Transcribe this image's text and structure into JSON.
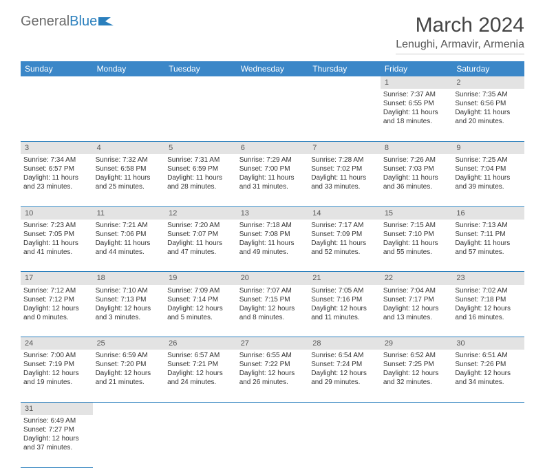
{
  "brand": {
    "part1": "General",
    "part2": "Blue"
  },
  "title": "March 2024",
  "location": "Lenughi, Armavir, Armenia",
  "colors": {
    "header_bg": "#3b87c8",
    "header_text": "#ffffff",
    "daynum_bg": "#e3e3e3",
    "divider": "#2a7fbd",
    "text": "#333333"
  },
  "weekdays": [
    "Sunday",
    "Monday",
    "Tuesday",
    "Wednesday",
    "Thursday",
    "Friday",
    "Saturday"
  ],
  "weeks": [
    [
      null,
      null,
      null,
      null,
      null,
      {
        "n": "1",
        "sr": "Sunrise: 7:37 AM",
        "ss": "Sunset: 6:55 PM",
        "dl": "Daylight: 11 hours and 18 minutes."
      },
      {
        "n": "2",
        "sr": "Sunrise: 7:35 AM",
        "ss": "Sunset: 6:56 PM",
        "dl": "Daylight: 11 hours and 20 minutes."
      }
    ],
    [
      {
        "n": "3",
        "sr": "Sunrise: 7:34 AM",
        "ss": "Sunset: 6:57 PM",
        "dl": "Daylight: 11 hours and 23 minutes."
      },
      {
        "n": "4",
        "sr": "Sunrise: 7:32 AM",
        "ss": "Sunset: 6:58 PM",
        "dl": "Daylight: 11 hours and 25 minutes."
      },
      {
        "n": "5",
        "sr": "Sunrise: 7:31 AM",
        "ss": "Sunset: 6:59 PM",
        "dl": "Daylight: 11 hours and 28 minutes."
      },
      {
        "n": "6",
        "sr": "Sunrise: 7:29 AM",
        "ss": "Sunset: 7:00 PM",
        "dl": "Daylight: 11 hours and 31 minutes."
      },
      {
        "n": "7",
        "sr": "Sunrise: 7:28 AM",
        "ss": "Sunset: 7:02 PM",
        "dl": "Daylight: 11 hours and 33 minutes."
      },
      {
        "n": "8",
        "sr": "Sunrise: 7:26 AM",
        "ss": "Sunset: 7:03 PM",
        "dl": "Daylight: 11 hours and 36 minutes."
      },
      {
        "n": "9",
        "sr": "Sunrise: 7:25 AM",
        "ss": "Sunset: 7:04 PM",
        "dl": "Daylight: 11 hours and 39 minutes."
      }
    ],
    [
      {
        "n": "10",
        "sr": "Sunrise: 7:23 AM",
        "ss": "Sunset: 7:05 PM",
        "dl": "Daylight: 11 hours and 41 minutes."
      },
      {
        "n": "11",
        "sr": "Sunrise: 7:21 AM",
        "ss": "Sunset: 7:06 PM",
        "dl": "Daylight: 11 hours and 44 minutes."
      },
      {
        "n": "12",
        "sr": "Sunrise: 7:20 AM",
        "ss": "Sunset: 7:07 PM",
        "dl": "Daylight: 11 hours and 47 minutes."
      },
      {
        "n": "13",
        "sr": "Sunrise: 7:18 AM",
        "ss": "Sunset: 7:08 PM",
        "dl": "Daylight: 11 hours and 49 minutes."
      },
      {
        "n": "14",
        "sr": "Sunrise: 7:17 AM",
        "ss": "Sunset: 7:09 PM",
        "dl": "Daylight: 11 hours and 52 minutes."
      },
      {
        "n": "15",
        "sr": "Sunrise: 7:15 AM",
        "ss": "Sunset: 7:10 PM",
        "dl": "Daylight: 11 hours and 55 minutes."
      },
      {
        "n": "16",
        "sr": "Sunrise: 7:13 AM",
        "ss": "Sunset: 7:11 PM",
        "dl": "Daylight: 11 hours and 57 minutes."
      }
    ],
    [
      {
        "n": "17",
        "sr": "Sunrise: 7:12 AM",
        "ss": "Sunset: 7:12 PM",
        "dl": "Daylight: 12 hours and 0 minutes."
      },
      {
        "n": "18",
        "sr": "Sunrise: 7:10 AM",
        "ss": "Sunset: 7:13 PM",
        "dl": "Daylight: 12 hours and 3 minutes."
      },
      {
        "n": "19",
        "sr": "Sunrise: 7:09 AM",
        "ss": "Sunset: 7:14 PM",
        "dl": "Daylight: 12 hours and 5 minutes."
      },
      {
        "n": "20",
        "sr": "Sunrise: 7:07 AM",
        "ss": "Sunset: 7:15 PM",
        "dl": "Daylight: 12 hours and 8 minutes."
      },
      {
        "n": "21",
        "sr": "Sunrise: 7:05 AM",
        "ss": "Sunset: 7:16 PM",
        "dl": "Daylight: 12 hours and 11 minutes."
      },
      {
        "n": "22",
        "sr": "Sunrise: 7:04 AM",
        "ss": "Sunset: 7:17 PM",
        "dl": "Daylight: 12 hours and 13 minutes."
      },
      {
        "n": "23",
        "sr": "Sunrise: 7:02 AM",
        "ss": "Sunset: 7:18 PM",
        "dl": "Daylight: 12 hours and 16 minutes."
      }
    ],
    [
      {
        "n": "24",
        "sr": "Sunrise: 7:00 AM",
        "ss": "Sunset: 7:19 PM",
        "dl": "Daylight: 12 hours and 19 minutes."
      },
      {
        "n": "25",
        "sr": "Sunrise: 6:59 AM",
        "ss": "Sunset: 7:20 PM",
        "dl": "Daylight: 12 hours and 21 minutes."
      },
      {
        "n": "26",
        "sr": "Sunrise: 6:57 AM",
        "ss": "Sunset: 7:21 PM",
        "dl": "Daylight: 12 hours and 24 minutes."
      },
      {
        "n": "27",
        "sr": "Sunrise: 6:55 AM",
        "ss": "Sunset: 7:22 PM",
        "dl": "Daylight: 12 hours and 26 minutes."
      },
      {
        "n": "28",
        "sr": "Sunrise: 6:54 AM",
        "ss": "Sunset: 7:24 PM",
        "dl": "Daylight: 12 hours and 29 minutes."
      },
      {
        "n": "29",
        "sr": "Sunrise: 6:52 AM",
        "ss": "Sunset: 7:25 PM",
        "dl": "Daylight: 12 hours and 32 minutes."
      },
      {
        "n": "30",
        "sr": "Sunrise: 6:51 AM",
        "ss": "Sunset: 7:26 PM",
        "dl": "Daylight: 12 hours and 34 minutes."
      }
    ],
    [
      {
        "n": "31",
        "sr": "Sunrise: 6:49 AM",
        "ss": "Sunset: 7:27 PM",
        "dl": "Daylight: 12 hours and 37 minutes."
      },
      null,
      null,
      null,
      null,
      null,
      null
    ]
  ]
}
